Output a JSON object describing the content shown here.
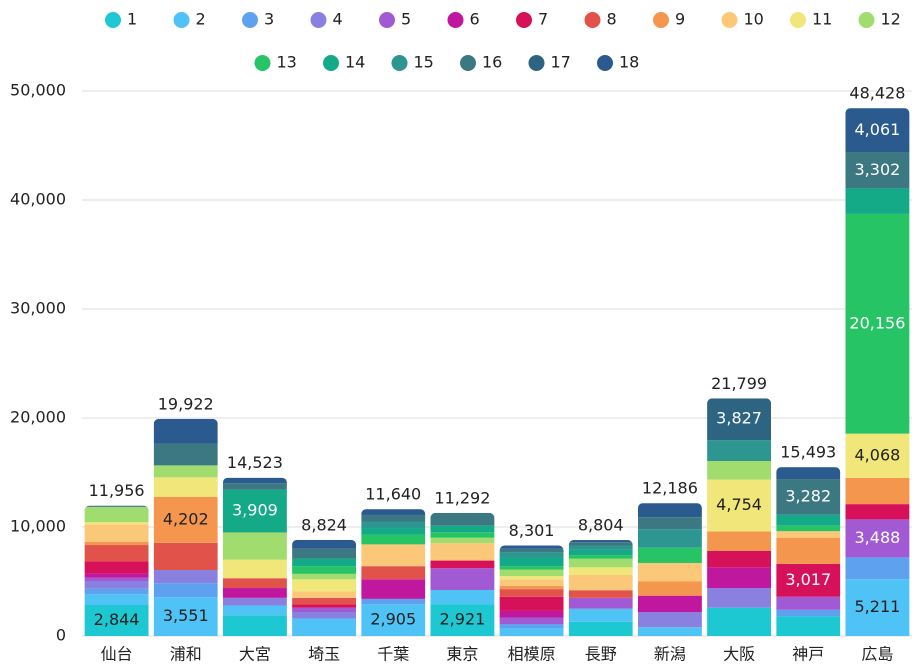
{
  "chart_data": {
    "type": "stacked_bar",
    "categories": [
      "仙台",
      "浦和",
      "大宮",
      "埼玉",
      "千葉",
      "東京",
      "相模原",
      "長野",
      "新潟",
      "大阪",
      "神戸",
      "広島"
    ],
    "ylim": [
      0,
      50000
    ],
    "yticks": [
      0,
      {
        "value": 10000,
        "label": "10,000"
      },
      {
        "value": 20000,
        "label": "20,000"
      },
      {
        "value": 30000,
        "label": "30,000"
      },
      {
        "value": 40000,
        "label": "40,000"
      },
      {
        "value": 50000,
        "label": "50,000"
      }
    ],
    "grid": true,
    "legend": "top",
    "totals": [
      11956,
      19922,
      14523,
      8824,
      11640,
      11292,
      8301,
      8804,
      12186,
      21799,
      15493,
      48428
    ],
    "total_labels": [
      "11,956",
      "19,922",
      "14,523",
      "8,824",
      "11,640",
      "11,292",
      "8,301",
      "8,804",
      "12,186",
      "21,799",
      "15,493",
      "48,428"
    ],
    "series": [
      {
        "name": "1",
        "color": "#1ec8d2",
        "values": [
          2844,
          0,
          1900,
          0,
          0,
          2921,
          0,
          1300,
          0,
          2600,
          1800,
          0
        ],
        "value_labels": [
          "2,844",
          null,
          null,
          null,
          null,
          "2,921",
          null,
          null,
          null,
          null,
          null,
          null
        ]
      },
      {
        "name": "2",
        "color": "#4fc3f5",
        "values": [
          1000,
          3551,
          900,
          1600,
          2905,
          1300,
          700,
          1200,
          800,
          0,
          0,
          5211
        ],
        "value_labels": [
          null,
          "3,551",
          null,
          null,
          "2,905",
          null,
          null,
          null,
          null,
          null,
          null,
          "5,211"
        ]
      },
      {
        "name": "3",
        "color": "#5ea2ef",
        "values": [
          500,
          1300,
          0,
          0,
          500,
          0,
          400,
          0,
          0,
          0,
          600,
          2000
        ]
      },
      {
        "name": "4",
        "color": "#8a80e0",
        "values": [
          700,
          1200,
          700,
          600,
          0,
          0,
          0,
          0,
          1400,
          1800,
          0,
          0
        ]
      },
      {
        "name": "5",
        "color": "#a25ad4",
        "values": [
          300,
          0,
          0,
          400,
          0,
          2000,
          600,
          1000,
          0,
          0,
          1200,
          3488
        ],
        "value_labels": [
          null,
          null,
          null,
          null,
          null,
          null,
          null,
          null,
          null,
          null,
          null,
          "3,488"
        ]
      },
      {
        "name": "6",
        "color": "#c0179f",
        "values": [
          400,
          0,
          900,
          0,
          1800,
          0,
          600,
          0,
          1500,
          1900,
          0,
          0
        ]
      },
      {
        "name": "7",
        "color": "#d7105a",
        "values": [
          1100,
          0,
          0,
          300,
          0,
          700,
          1300,
          0,
          0,
          1500,
          3017,
          1400
        ],
        "value_labels": [
          null,
          null,
          null,
          null,
          null,
          null,
          null,
          null,
          null,
          null,
          "3,017",
          null
        ]
      },
      {
        "name": "8",
        "color": "#e0524a",
        "values": [
          1500,
          2500,
          900,
          600,
          1200,
          0,
          700,
          700,
          0,
          0,
          0,
          0
        ]
      },
      {
        "name": "9",
        "color": "#f5964f",
        "values": [
          300,
          4202,
          0,
          0,
          0,
          0,
          300,
          0,
          1300,
          1800,
          2400,
          2400
        ],
        "value_labels": [
          null,
          "4,202",
          null,
          null,
          null,
          null,
          null,
          null,
          null,
          null,
          null,
          null
        ]
      },
      {
        "name": "10",
        "color": "#fac878",
        "values": [
          1600,
          0,
          0,
          600,
          2000,
          1600,
          600,
          1400,
          1700,
          0,
          600,
          0
        ]
      },
      {
        "name": "11",
        "color": "#f0e67a",
        "values": [
          200,
          1800,
          1700,
          1100,
          0,
          0,
          300,
          700,
          0,
          4754,
          0,
          4068
        ],
        "value_labels": [
          null,
          null,
          null,
          null,
          null,
          null,
          null,
          null,
          null,
          "4,754",
          null,
          "4,068"
        ]
      },
      {
        "name": "12",
        "color": "#a0dc6e",
        "values": [
          1400,
          1100,
          2500,
          500,
          0,
          500,
          600,
          800,
          0,
          1700,
          0,
          0
        ]
      },
      {
        "name": "13",
        "color": "#26c465",
        "values": [
          0,
          0,
          0,
          700,
          900,
          500,
          300,
          300,
          1400,
          0,
          500,
          20156
        ],
        "value_labels": [
          null,
          null,
          null,
          null,
          null,
          null,
          null,
          null,
          null,
          null,
          null,
          "20,156"
        ]
      },
      {
        "name": "14",
        "color": "#14aa87",
        "values": [
          0,
          0,
          3909,
          700,
          600,
          600,
          800,
          500,
          0,
          0,
          1000,
          2342
        ],
        "value_labels": [
          null,
          null,
          "3,909",
          null,
          null,
          null,
          null,
          null,
          null,
          null,
          null,
          null
        ]
      },
      {
        "name": "15",
        "color": "#2d9691",
        "values": [
          0,
          0,
          0,
          0,
          600,
          0,
          500,
          400,
          1700,
          1918,
          0,
          0
        ]
      },
      {
        "name": "16",
        "color": "#3c7882",
        "values": [
          0,
          2000,
          614,
          900,
          600,
          1171,
          300,
          300,
          1100,
          0,
          3282,
          3302
        ],
        "value_labels": [
          null,
          null,
          null,
          null,
          null,
          null,
          null,
          null,
          null,
          null,
          "3,282",
          "3,302"
        ]
      },
      {
        "name": "17",
        "color": "#2d6482",
        "values": [
          50,
          0,
          0,
          0,
          0,
          0,
          0,
          0,
          0,
          3827,
          0,
          0
        ],
        "value_labels": [
          null,
          null,
          null,
          null,
          null,
          null,
          null,
          null,
          null,
          "3,827",
          null,
          null
        ]
      },
      {
        "name": "18",
        "color": "#2a5a8e",
        "values": [
          62,
          2269,
          500,
          824,
          535,
          0,
          301,
          204,
          1286,
          0,
          1094,
          4061
        ],
        "value_labels": [
          null,
          null,
          null,
          null,
          null,
          null,
          null,
          null,
          null,
          null,
          null,
          "4,061"
        ]
      }
    ]
  }
}
